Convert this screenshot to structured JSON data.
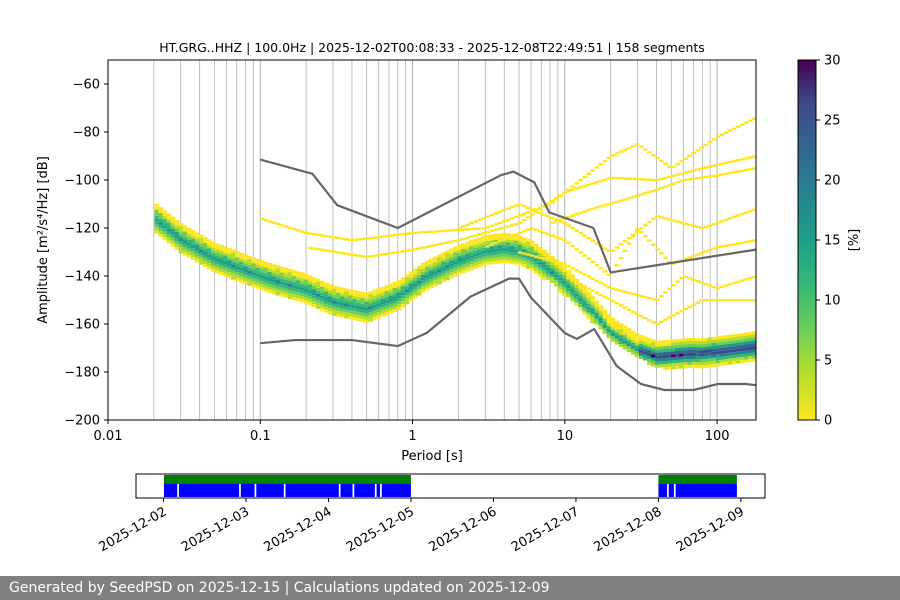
{
  "chart_data": [
    {
      "type": "heatmap",
      "title": "HT.GRG..HHZ | 100.0Hz | 2025-12-02T00:08:33 - 2025-12-08T22:49:51 | 158 segments",
      "xlabel": "Period [s]",
      "ylabel": "Amplitude [m²/s⁴/Hz] [dB]",
      "x_scale": "log",
      "xlim": [
        0.01,
        180
      ],
      "ylim": [
        -200,
        -50
      ],
      "x_ticks": [
        0.01,
        0.1,
        1,
        10,
        100
      ],
      "x_tick_labels": [
        "0.01",
        "0.1",
        "1",
        "10",
        "100"
      ],
      "y_ticks": [
        -200,
        -180,
        -160,
        -140,
        -120,
        -100,
        -80,
        -60
      ],
      "y_tick_labels": [
        "−200",
        "−180",
        "−160",
        "−140",
        "−120",
        "−100",
        "−80",
        "−60"
      ],
      "grid": "vertical log gridlines",
      "colormap": "viridis_r",
      "colorbar": {
        "label": "[%]",
        "range": [
          0,
          30
        ],
        "ticks": [
          0,
          5,
          10,
          15,
          20,
          25,
          30
        ],
        "tick_labels": [
          "0",
          "5",
          "10",
          "15",
          "20",
          "25",
          "30"
        ]
      },
      "mode_curve": {
        "x": [
          0.02,
          0.03,
          0.05,
          0.08,
          0.12,
          0.2,
          0.3,
          0.5,
          0.8,
          1.2,
          2,
          3,
          4,
          5,
          6,
          8,
          10,
          15,
          20,
          30,
          40,
          60,
          100,
          180
        ],
        "y": [
          -115,
          -124,
          -132,
          -137,
          -141,
          -145,
          -150,
          -153,
          -148,
          -140,
          -133,
          -129,
          -128,
          -129,
          -131,
          -137,
          -142,
          -154,
          -163,
          -170,
          -173,
          -172,
          -171,
          -169
        ]
      },
      "spread_curves": [
        {
          "x": [
            0.02,
            0.03,
            0.05,
            0.1,
            0.2,
            0.4,
            0.8,
            1.5,
            3,
            5,
            8,
            12,
            20,
            40,
            80,
            180
          ],
          "y": [
            -111,
            -118,
            -124,
            -127,
            -136,
            -144,
            -141,
            -132,
            -125,
            -124,
            -131,
            -141,
            -155,
            -168,
            -169,
            -166
          ]
        },
        {
          "x": [
            0.02,
            0.03,
            0.05,
            0.1,
            0.2,
            0.4,
            0.8,
            1.5,
            3,
            5,
            8,
            12,
            20,
            40,
            80,
            180
          ],
          "y": [
            -119,
            -128,
            -137,
            -143,
            -150,
            -156,
            -155,
            -145,
            -134,
            -133,
            -139,
            -149,
            -163,
            -175,
            -175,
            -172
          ]
        }
      ],
      "scatter_curves": [
        {
          "x": [
            0.1,
            0.2,
            0.4,
            1,
            3,
            8,
            20,
            30,
            50,
            100,
            180
          ],
          "y": [
            -116,
            -122,
            -125,
            -122,
            -120,
            -110,
            -90,
            -85,
            -95,
            -82,
            -74
          ]
        },
        {
          "x": [
            0.2,
            0.5,
            1,
            2,
            5,
            10,
            20,
            40,
            80,
            180
          ],
          "y": [
            -128,
            -132,
            -129,
            -125,
            -118,
            -105,
            -99,
            -100,
            -95,
            -90
          ]
        },
        {
          "x": [
            2,
            5,
            10,
            20,
            40,
            80,
            180
          ],
          "y": [
            -120,
            -110,
            -118,
            -130,
            -115,
            -120,
            -112
          ]
        },
        {
          "x": [
            3,
            6,
            10,
            20,
            30,
            50,
            100,
            180
          ],
          "y": [
            -128,
            -120,
            -125,
            -140,
            -120,
            -135,
            -128,
            -125
          ]
        },
        {
          "x": [
            5,
            10,
            20,
            40,
            60,
            100,
            180
          ],
          "y": [
            -130,
            -135,
            -145,
            -150,
            -140,
            -145,
            -140
          ]
        },
        {
          "x": [
            10,
            20,
            40,
            80,
            180
          ],
          "y": [
            -140,
            -150,
            -160,
            -150,
            -150
          ]
        },
        {
          "x": [
            8,
            15,
            25,
            40,
            60,
            100,
            180
          ],
          "y": [
            -118,
            -112,
            -108,
            -104,
            -100,
            -98,
            -95
          ]
        }
      ],
      "nlnm": {
        "x": [
          0.1,
          0.17,
          0.4,
          0.8,
          1.24,
          2.4,
          4.3,
          5,
          6,
          10,
          12,
          15.6,
          21.9,
          31.6,
          45,
          70,
          101,
          154,
          180
        ],
        "y": [
          -168,
          -166.7,
          -166.7,
          -169.2,
          -163.7,
          -148.6,
          -141.1,
          -141.1,
          -149,
          -163.8,
          -166.2,
          -162.1,
          -177.5,
          -185,
          -187.5,
          -187.5,
          -185,
          -185,
          -185.5
        ]
      },
      "nhnm": {
        "x": [
          0.1,
          0.22,
          0.32,
          0.8,
          3.8,
          4.6,
          6.3,
          7.9,
          15.4,
          20,
          180
        ],
        "y": [
          -91.5,
          -97.4,
          -110.5,
          -120,
          -98,
          -96.5,
          -101,
          -113.5,
          -120,
          -138.5,
          -129
        ]
      }
    },
    {
      "type": "timeline",
      "x_ticks": [
        "2025-12-02",
        "2025-12-03",
        "2025-12-04",
        "2025-12-05",
        "2025-12-06",
        "2025-12-07",
        "2025-12-08",
        "2025-12-09"
      ],
      "xlim": [
        "2025-12-01T16:00",
        "2025-12-09T07:00"
      ],
      "data_available": [
        [
          "2025-12-02T00:08",
          "2025-12-04T23:59"
        ],
        [
          "2025-12-08T00:00",
          "2025-12-08T22:49"
        ]
      ],
      "psd_coverage": [
        [
          "2025-12-02T00:08",
          "2025-12-02T04:00"
        ],
        [
          "2025-12-02T04:30",
          "2025-12-02T22:00"
        ],
        [
          "2025-12-02T22:30",
          "2025-12-03T02:30"
        ],
        [
          "2025-12-03T03:00",
          "2025-12-03T11:00"
        ],
        [
          "2025-12-03T11:30",
          "2025-12-04T03:00"
        ],
        [
          "2025-12-04T03:30",
          "2025-12-04T07:00"
        ],
        [
          "2025-12-04T07:30",
          "2025-12-04T13:30"
        ],
        [
          "2025-12-04T14:00",
          "2025-12-04T15:00"
        ],
        [
          "2025-12-04T15:30",
          "2025-12-04T23:59"
        ],
        [
          "2025-12-08T00:00",
          "2025-12-08T02:30"
        ],
        [
          "2025-12-08T03:00",
          "2025-12-08T04:30"
        ],
        [
          "2025-12-08T05:00",
          "2025-12-08T22:49"
        ]
      ],
      "colors": {
        "data": "#008000",
        "psd": "#0000ff"
      }
    }
  ],
  "footer": "Generated by SeedPSD on 2025-12-15 | Calculations updated on 2025-12-09"
}
